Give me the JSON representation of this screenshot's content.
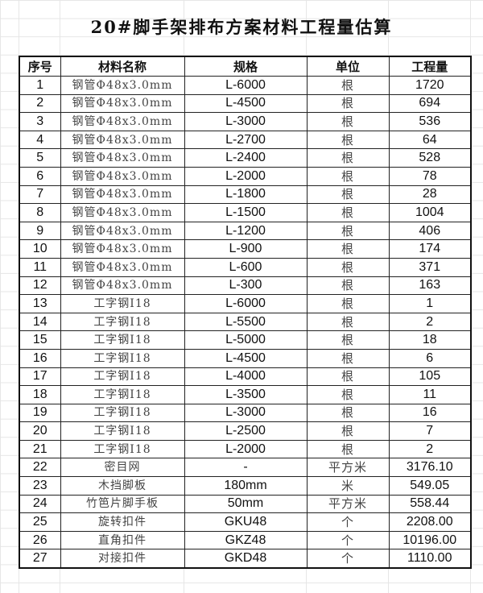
{
  "title": "20#脚手架排布方案材料工程量估算",
  "columns": [
    "序号",
    "材料名称",
    "规格",
    "单位",
    "工程量"
  ],
  "rows": [
    [
      "1",
      "钢管Φ48x3.0mm",
      "L-6000",
      "根",
      "1720"
    ],
    [
      "2",
      "钢管Φ48x3.0mm",
      "L-4500",
      "根",
      "694"
    ],
    [
      "3",
      "钢管Φ48x3.0mm",
      "L-3000",
      "根",
      "536"
    ],
    [
      "4",
      "钢管Φ48x3.0mm",
      "L-2700",
      "根",
      "64"
    ],
    [
      "5",
      "钢管Φ48x3.0mm",
      "L-2400",
      "根",
      "528"
    ],
    [
      "6",
      "钢管Φ48x3.0mm",
      "L-2000",
      "根",
      "78"
    ],
    [
      "7",
      "钢管Φ48x3.0mm",
      "L-1800",
      "根",
      "28"
    ],
    [
      "8",
      "钢管Φ48x3.0mm",
      "L-1500",
      "根",
      "1004"
    ],
    [
      "9",
      "钢管Φ48x3.0mm",
      "L-1200",
      "根",
      "406"
    ],
    [
      "10",
      "钢管Φ48x3.0mm",
      "L-900",
      "根",
      "174"
    ],
    [
      "11",
      "钢管Φ48x3.0mm",
      "L-600",
      "根",
      "371"
    ],
    [
      "12",
      "钢管Φ48x3.0mm",
      "L-300",
      "根",
      "163"
    ],
    [
      "13",
      "工字钢I18",
      "L-6000",
      "根",
      "1"
    ],
    [
      "14",
      "工字钢I18",
      "L-5500",
      "根",
      "2"
    ],
    [
      "15",
      "工字钢I18",
      "L-5000",
      "根",
      "18"
    ],
    [
      "16",
      "工字钢I18",
      "L-4500",
      "根",
      "6"
    ],
    [
      "17",
      "工字钢I18",
      "L-4000",
      "根",
      "105"
    ],
    [
      "18",
      "工字钢I18",
      "L-3500",
      "根",
      "11"
    ],
    [
      "19",
      "工字钢I18",
      "L-3000",
      "根",
      "16"
    ],
    [
      "20",
      "工字钢I18",
      "L-2500",
      "根",
      "7"
    ],
    [
      "21",
      "工字钢I18",
      "L-2000",
      "根",
      "2"
    ],
    [
      "22",
      "密目网",
      "-",
      "平方米",
      "3176.10"
    ],
    [
      "23",
      "木挡脚板",
      "180mm",
      "米",
      "549.05"
    ],
    [
      "24",
      "竹笆片脚手板",
      "50mm",
      "平方米",
      "558.44"
    ],
    [
      "25",
      "旋转扣件",
      "GKU48",
      "个",
      "2208.00"
    ],
    [
      "26",
      "直角扣件",
      "GKZ48",
      "个",
      "10196.00"
    ],
    [
      "27",
      "对接扣件",
      "GKD48",
      "个",
      "1110.00"
    ]
  ]
}
